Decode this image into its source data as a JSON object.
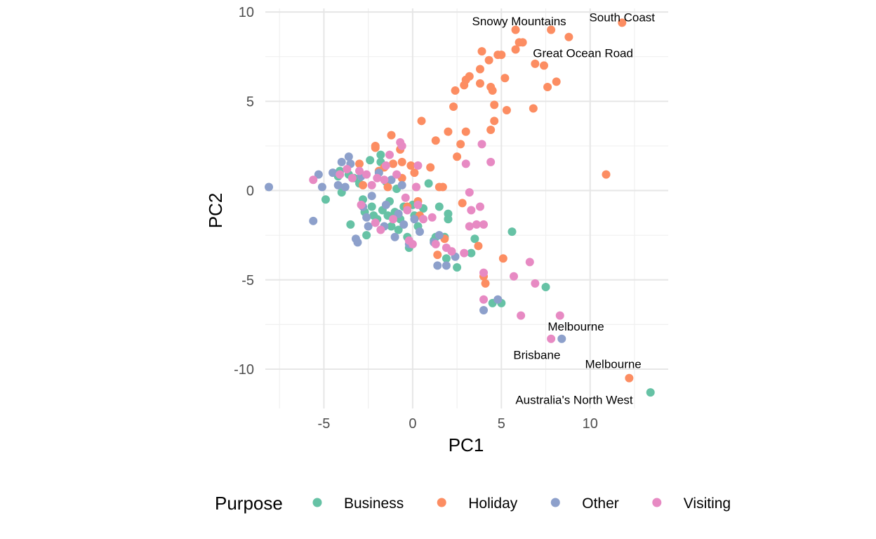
{
  "chart_data": {
    "type": "scatter",
    "xlabel": "PC1",
    "ylabel": "PC2",
    "xlim": [
      -8.3,
      14.4
    ],
    "ylim": [
      -12.2,
      10.2
    ],
    "x_ticks": [
      -5,
      0,
      5,
      10
    ],
    "y_ticks": [
      -10,
      -5,
      0,
      5,
      10
    ],
    "x_tick_labels": [
      "-5",
      "0",
      "5",
      "10"
    ],
    "y_tick_labels": [
      "-10",
      "-5",
      "0",
      "5",
      "10"
    ],
    "grid": true,
    "legend": {
      "title": "Purpose",
      "position": "bottom"
    },
    "series": [
      {
        "name": "Business",
        "color": "#66C2A5",
        "points": [
          [
            -4.9,
            -0.5
          ],
          [
            -4.2,
            0.8
          ],
          [
            -4.1,
            1.1
          ],
          [
            -4.0,
            -0.1
          ],
          [
            -3.6,
            0.9
          ],
          [
            -3.5,
            -1.9
          ],
          [
            -3.3,
            0.7
          ],
          [
            -3.0,
            0.4
          ],
          [
            -2.8,
            -0.5
          ],
          [
            -2.7,
            -1.2
          ],
          [
            -2.6,
            -2.5
          ],
          [
            -2.4,
            1.7
          ],
          [
            -2.3,
            -0.9
          ],
          [
            -2.2,
            -1.4
          ],
          [
            -2.0,
            -1.6
          ],
          [
            -1.8,
            2.0
          ],
          [
            -1.8,
            1.6
          ],
          [
            -1.7,
            -1.1
          ],
          [
            -1.5,
            0.5
          ],
          [
            -1.4,
            -1.4
          ],
          [
            -1.3,
            -0.6
          ],
          [
            -1.2,
            -2.0
          ],
          [
            -1.0,
            -1.2
          ],
          [
            -0.9,
            0.1
          ],
          [
            -0.8,
            -2.2
          ],
          [
            -0.7,
            -1.6
          ],
          [
            -0.5,
            -0.9
          ],
          [
            -0.3,
            -2.6
          ],
          [
            -0.2,
            -3.2
          ],
          [
            0.0,
            -0.8
          ],
          [
            0.1,
            -1.4
          ],
          [
            0.3,
            -2.0
          ],
          [
            0.6,
            -1.0
          ],
          [
            0.9,
            0.4
          ],
          [
            1.2,
            -2.8
          ],
          [
            1.3,
            -2.6
          ],
          [
            1.5,
            -0.9
          ],
          [
            1.8,
            -2.6
          ],
          [
            1.9,
            -3.8
          ],
          [
            2.0,
            -1.6
          ],
          [
            2.0,
            -1.3
          ],
          [
            2.5,
            -4.3
          ],
          [
            3.3,
            -3.5
          ],
          [
            3.5,
            -2.7
          ],
          [
            4.5,
            -6.3
          ],
          [
            5.0,
            -6.3
          ],
          [
            5.6,
            -2.3
          ],
          [
            7.5,
            -5.4
          ],
          [
            13.4,
            -11.3
          ]
        ]
      },
      {
        "name": "Holiday",
        "color": "#FC8D62",
        "points": [
          [
            -3.0,
            1.5
          ],
          [
            -2.8,
            0.3
          ],
          [
            -2.1,
            2.5
          ],
          [
            -2.1,
            2.4
          ],
          [
            -1.9,
            1.1
          ],
          [
            -1.6,
            1.3
          ],
          [
            -1.4,
            0.2
          ],
          [
            -1.2,
            3.1
          ],
          [
            -1.1,
            1.5
          ],
          [
            -0.7,
            2.3
          ],
          [
            -0.6,
            1.6
          ],
          [
            -0.6,
            0.7
          ],
          [
            -0.3,
            -0.9
          ],
          [
            -0.1,
            1.4
          ],
          [
            0.1,
            1.0
          ],
          [
            0.2,
            0.2
          ],
          [
            0.3,
            -0.6
          ],
          [
            0.4,
            -1.4
          ],
          [
            0.5,
            3.9
          ],
          [
            1.0,
            1.3
          ],
          [
            1.3,
            2.8
          ],
          [
            1.4,
            -3.6
          ],
          [
            1.5,
            0.2
          ],
          [
            1.7,
            0.2
          ],
          [
            1.8,
            -2.7
          ],
          [
            2.0,
            3.3
          ],
          [
            2.3,
            4.7
          ],
          [
            2.4,
            5.6
          ],
          [
            2.5,
            1.9
          ],
          [
            2.7,
            2.6
          ],
          [
            2.8,
            -0.7
          ],
          [
            2.9,
            5.9
          ],
          [
            3.0,
            6.2
          ],
          [
            3.0,
            3.3
          ],
          [
            3.2,
            6.4
          ],
          [
            3.7,
            -3.1
          ],
          [
            3.8,
            6.0
          ],
          [
            3.8,
            6.8
          ],
          [
            3.9,
            7.8
          ],
          [
            4.0,
            -4.8
          ],
          [
            4.1,
            -5.2
          ],
          [
            4.3,
            7.3
          ],
          [
            4.4,
            3.4
          ],
          [
            4.4,
            5.8
          ],
          [
            4.5,
            5.6
          ],
          [
            4.6,
            4.8
          ],
          [
            4.6,
            3.9
          ],
          [
            4.8,
            7.6
          ],
          [
            5.0,
            7.6
          ],
          [
            5.1,
            -3.8
          ],
          [
            5.2,
            6.3
          ],
          [
            5.3,
            4.5
          ],
          [
            5.8,
            7.9
          ],
          [
            5.8,
            9.0
          ],
          [
            6.0,
            8.3
          ],
          [
            6.2,
            8.3
          ],
          [
            6.8,
            4.6
          ],
          [
            6.9,
            7.1
          ],
          [
            7.4,
            7.0
          ],
          [
            7.6,
            5.8
          ],
          [
            7.8,
            9.0
          ],
          [
            8.1,
            6.1
          ],
          [
            8.8,
            8.6
          ],
          [
            10.9,
            0.9
          ],
          [
            11.8,
            9.4
          ],
          [
            12.2,
            -10.5
          ]
        ]
      },
      {
        "name": "Other",
        "color": "#8DA0CB",
        "points": [
          [
            -8.1,
            0.2
          ],
          [
            -5.6,
            -1.7
          ],
          [
            -5.3,
            0.9
          ],
          [
            -5.1,
            0.2
          ],
          [
            -4.5,
            1.0
          ],
          [
            -4.2,
            0.3
          ],
          [
            -4.0,
            1.6
          ],
          [
            -3.8,
            0.2
          ],
          [
            -3.6,
            1.9
          ],
          [
            -3.5,
            1.5
          ],
          [
            -3.2,
            -2.7
          ],
          [
            -3.1,
            -2.9
          ],
          [
            -2.9,
            0.8
          ],
          [
            -2.8,
            -0.9
          ],
          [
            -2.6,
            -1.5
          ],
          [
            -2.5,
            -2.0
          ],
          [
            -2.3,
            -0.3
          ],
          [
            -1.9,
            1.0
          ],
          [
            -1.6,
            -2.0
          ],
          [
            -1.5,
            -0.8
          ],
          [
            -1.2,
            0.6
          ],
          [
            -1.0,
            -2.6
          ],
          [
            -0.8,
            -1.3
          ],
          [
            -0.6,
            0.3
          ],
          [
            -0.5,
            -1.9
          ],
          [
            -0.2,
            -3.0
          ],
          [
            0.1,
            -1.6
          ],
          [
            0.4,
            -2.3
          ],
          [
            1.2,
            -2.9
          ],
          [
            1.4,
            -4.2
          ],
          [
            1.5,
            -2.5
          ],
          [
            1.9,
            -4.2
          ],
          [
            2.4,
            -3.7
          ],
          [
            4.0,
            -6.7
          ],
          [
            4.8,
            -6.1
          ],
          [
            8.4,
            -8.3
          ]
        ]
      },
      {
        "name": "Visiting",
        "color": "#E78AC3",
        "points": [
          [
            -5.6,
            0.6
          ],
          [
            -4.1,
            0.9
          ],
          [
            -3.7,
            1.2
          ],
          [
            -3.4,
            0.7
          ],
          [
            -3.0,
            1.1
          ],
          [
            -2.9,
            -0.8
          ],
          [
            -2.6,
            0.9
          ],
          [
            -2.3,
            0.3
          ],
          [
            -2.1,
            -1.8
          ],
          [
            -2.0,
            0.7
          ],
          [
            -1.8,
            -2.2
          ],
          [
            -1.6,
            0.6
          ],
          [
            -1.5,
            1.4
          ],
          [
            -1.3,
            2.0
          ],
          [
            -1.1,
            -1.6
          ],
          [
            -0.9,
            0.9
          ],
          [
            -0.7,
            2.7
          ],
          [
            -0.6,
            2.5
          ],
          [
            -0.4,
            -0.4
          ],
          [
            -0.3,
            -1.1
          ],
          [
            -0.2,
            -2.8
          ],
          [
            0.0,
            -3.0
          ],
          [
            0.2,
            0.2
          ],
          [
            0.3,
            1.4
          ],
          [
            0.3,
            -0.8
          ],
          [
            0.6,
            -1.6
          ],
          [
            1.1,
            -1.5
          ],
          [
            1.3,
            -3.0
          ],
          [
            1.9,
            -3.2
          ],
          [
            2.2,
            -3.4
          ],
          [
            2.9,
            -3.5
          ],
          [
            3.0,
            1.5
          ],
          [
            3.2,
            -0.1
          ],
          [
            3.2,
            -2.0
          ],
          [
            3.3,
            -1.1
          ],
          [
            3.6,
            -1.9
          ],
          [
            3.8,
            -0.9
          ],
          [
            3.9,
            2.6
          ],
          [
            4.0,
            -1.9
          ],
          [
            4.0,
            -4.6
          ],
          [
            4.0,
            -6.1
          ],
          [
            4.4,
            1.6
          ],
          [
            5.7,
            -4.8
          ],
          [
            6.1,
            -7.0
          ],
          [
            6.6,
            -4.0
          ],
          [
            6.9,
            -5.2
          ],
          [
            7.8,
            -8.3
          ],
          [
            8.3,
            -7.0
          ]
        ]
      }
    ],
    "annotations": [
      {
        "text": "Snowy Mountains",
        "x": 6.0,
        "y": 9.5
      },
      {
        "text": "South Coast",
        "x": 11.8,
        "y": 9.7
      },
      {
        "text": "Great Ocean Road",
        "x": 9.6,
        "y": 7.7
      },
      {
        "text": "Melbourne",
        "x": 9.2,
        "y": -7.6
      },
      {
        "text": "Brisbane",
        "x": 7.0,
        "y": -9.2
      },
      {
        "text": "Melbourne",
        "x": 11.3,
        "y": -9.7
      },
      {
        "text": "Australia's North West",
        "x": 9.1,
        "y": -11.7
      }
    ]
  }
}
